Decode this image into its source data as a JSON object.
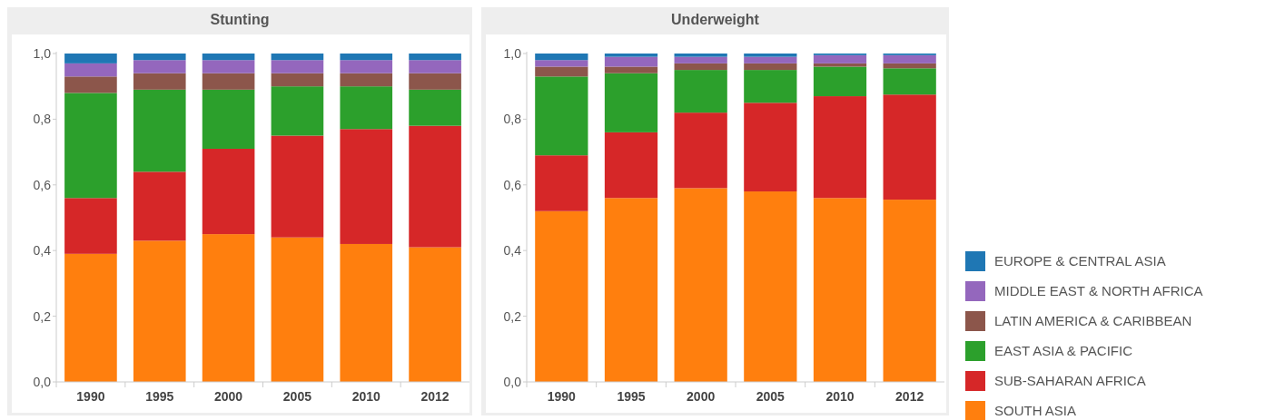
{
  "chart_data": [
    {
      "type": "bar",
      "title": "Stunting",
      "stacked": true,
      "categories": [
        "1990",
        "1995",
        "2000",
        "2005",
        "2010",
        "2012"
      ],
      "ylim": [
        0,
        1
      ],
      "yticks": [
        {
          "value": 0,
          "label": "0,0"
        },
        {
          "value": 0.2,
          "label": "0,2"
        },
        {
          "value": 0.4,
          "label": "0,4"
        },
        {
          "value": 0.6,
          "label": "0,6"
        },
        {
          "value": 0.8,
          "label": "0,8"
        },
        {
          "value": 1,
          "label": "1,0"
        }
      ],
      "grid": false,
      "legend": false,
      "series": [
        {
          "color": "#ff7f0e",
          "values": [
            0.39,
            0.43,
            0.45,
            0.44,
            0.42,
            0.41
          ]
        },
        {
          "color": "#d62728",
          "values": [
            0.17,
            0.21,
            0.26,
            0.31,
            0.35,
            0.37
          ]
        },
        {
          "color": "#2ca02c",
          "values": [
            0.32,
            0.25,
            0.18,
            0.15,
            0.13,
            0.11
          ]
        },
        {
          "color": "#8c564b",
          "values": [
            0.05,
            0.05,
            0.05,
            0.04,
            0.04,
            0.05
          ]
        },
        {
          "color": "#9467bd",
          "values": [
            0.04,
            0.04,
            0.04,
            0.04,
            0.04,
            0.04
          ]
        },
        {
          "color": "#1f77b4",
          "values": [
            0.03,
            0.02,
            0.02,
            0.02,
            0.02,
            0.02
          ]
        }
      ]
    },
    {
      "type": "bar",
      "title": "Underweight",
      "stacked": true,
      "categories": [
        "1990",
        "1995",
        "2000",
        "2005",
        "2010",
        "2012"
      ],
      "ylim": [
        0,
        1
      ],
      "yticks": [
        {
          "value": 0,
          "label": "0,0"
        },
        {
          "value": 0.2,
          "label": "0,2"
        },
        {
          "value": 0.4,
          "label": "0,4"
        },
        {
          "value": 0.6,
          "label": "0,6"
        },
        {
          "value": 0.8,
          "label": "0,8"
        },
        {
          "value": 1,
          "label": "1,0"
        }
      ],
      "grid": false,
      "legend": "right",
      "series": [
        {
          "name": "SOUTH ASIA",
          "color": "#ff7f0e",
          "values": [
            0.52,
            0.56,
            0.59,
            0.58,
            0.56,
            0.555
          ]
        },
        {
          "name": "SUB-SAHARAN AFRICA",
          "color": "#d62728",
          "values": [
            0.17,
            0.2,
            0.23,
            0.27,
            0.31,
            0.32
          ]
        },
        {
          "name": "EAST ASIA & PACIFIC",
          "color": "#2ca02c",
          "values": [
            0.24,
            0.18,
            0.13,
            0.1,
            0.09,
            0.08
          ]
        },
        {
          "name": "LATIN AMERICA & CARIBBEAN",
          "color": "#8c564b",
          "values": [
            0.03,
            0.02,
            0.02,
            0.02,
            0.01,
            0.015
          ]
        },
        {
          "name": "MIDDLE EAST & NORTH AFRICA",
          "color": "#9467bd",
          "values": [
            0.02,
            0.03,
            0.02,
            0.02,
            0.025,
            0.025
          ]
        },
        {
          "name": "EUROPE & CENTRAL ASIA",
          "color": "#1f77b4",
          "values": [
            0.02,
            0.01,
            0.01,
            0.01,
            0.005,
            0.005
          ]
        }
      ]
    }
  ]
}
